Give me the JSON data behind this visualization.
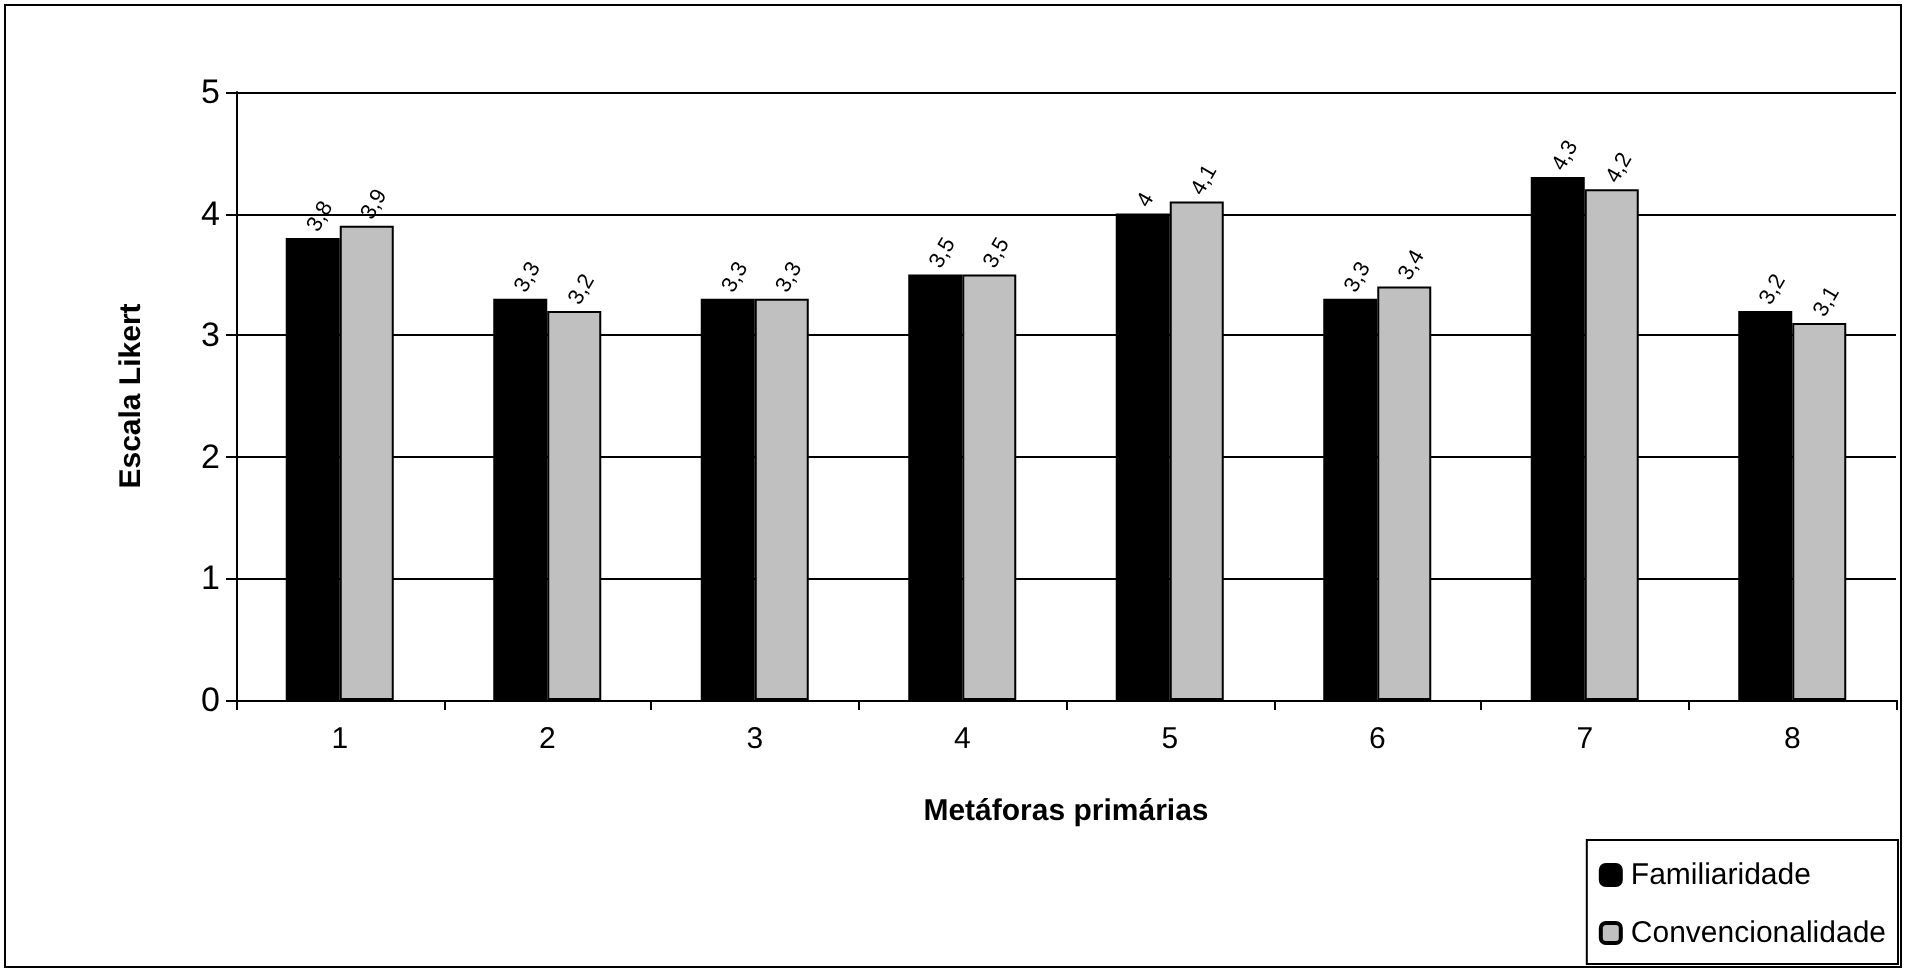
{
  "chart_data": {
    "type": "bar",
    "xlabel": "Metáforas primárias",
    "ylabel": "Escala Likert",
    "categories": [
      "1",
      "2",
      "3",
      "4",
      "5",
      "6",
      "7",
      "8"
    ],
    "series": [
      {
        "name": "Familiaridade",
        "color": "#000000",
        "values": [
          3.8,
          3.3,
          3.3,
          3.5,
          4,
          3.3,
          4.3,
          3.2
        ],
        "value_labels": [
          "3,8",
          "3,3",
          "3,3",
          "3,5",
          "4",
          "3,3",
          "4,3",
          "3,2"
        ]
      },
      {
        "name": "Convencionalidade",
        "color": "#c0c0c0",
        "values": [
          3.9,
          3.2,
          3.3,
          3.5,
          4.1,
          3.4,
          4.2,
          3.1
        ],
        "value_labels": [
          "3,9",
          "3,2",
          "3,3",
          "3,5",
          "4,1",
          "3,4",
          "4,2",
          "3,1"
        ]
      }
    ],
    "ylim": [
      0,
      5
    ],
    "yticks": [
      0,
      1,
      2,
      3,
      4,
      5
    ],
    "grid": "y",
    "legend": "bottom right"
  }
}
